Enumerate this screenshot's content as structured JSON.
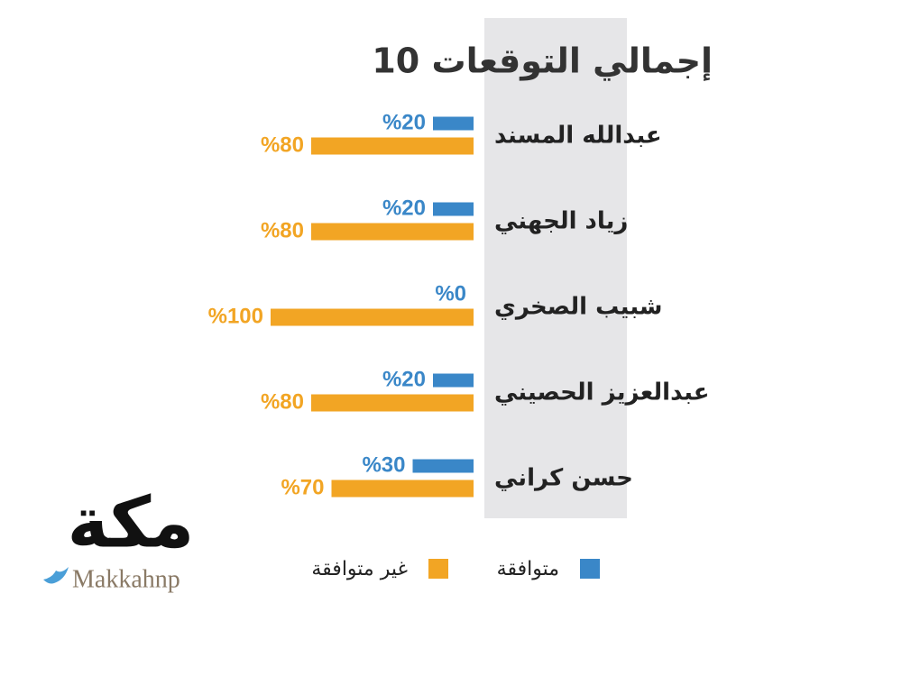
{
  "chart_data": {
    "type": "bar",
    "orientation": "horizontal-rtl",
    "title": "إجمالي التوقعات 10",
    "categories": [
      "عبدالله المسند",
      "زياد الجهني",
      "شبيب الصخري",
      "عبدالعزيز الحصيني",
      "حسن كراني"
    ],
    "series": [
      {
        "name": "متوافقة",
        "color": "#3a87c8",
        "values": [
          20,
          20,
          0,
          20,
          30
        ],
        "value_labels": [
          "%20",
          "%20",
          "%0",
          "%20",
          "%30"
        ]
      },
      {
        "name": "غير متوافقة",
        "color": "#f2a524",
        "values": [
          80,
          80,
          100,
          80,
          70
        ],
        "value_labels": [
          "%80",
          "%80",
          "%100",
          "%80",
          "%70"
        ]
      }
    ],
    "xlim": [
      0,
      100
    ]
  },
  "branding": {
    "logo": "مكة",
    "handle": "Makkahnp"
  }
}
